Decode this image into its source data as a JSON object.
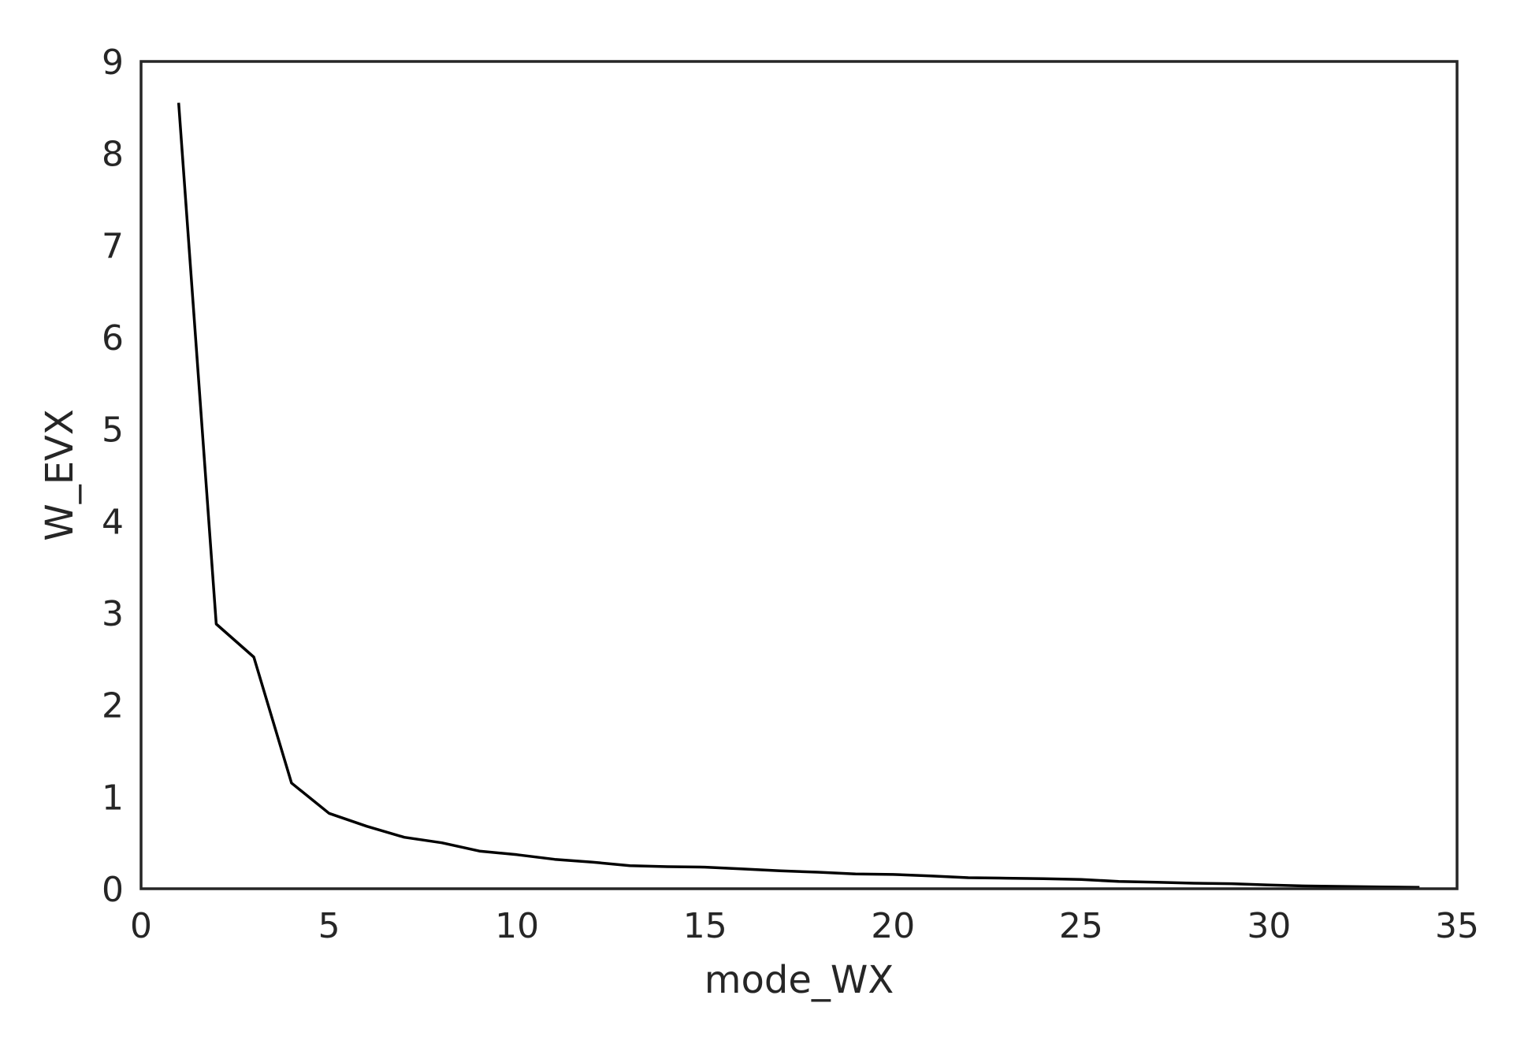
{
  "chart_data": {
    "type": "line",
    "title": "",
    "xlabel": "mode_WX",
    "ylabel": "W_EVX",
    "xlim": [
      0,
      35
    ],
    "ylim": [
      0,
      9
    ],
    "x_ticks": [
      0,
      5,
      10,
      15,
      20,
      25,
      30,
      35
    ],
    "y_ticks": [
      0,
      1,
      2,
      3,
      4,
      5,
      6,
      7,
      8,
      9
    ],
    "grid": false,
    "legend": "none",
    "series": [
      {
        "color": "#000000",
        "x": [
          1,
          2,
          3,
          4,
          5,
          6,
          7,
          8,
          9,
          10,
          11,
          12,
          13,
          14,
          15,
          16,
          17,
          18,
          19,
          20,
          21,
          22,
          23,
          24,
          25,
          26,
          27,
          28,
          29,
          30,
          31,
          32,
          33,
          34
        ],
        "y": [
          8.55,
          2.88,
          2.52,
          1.15,
          0.82,
          0.68,
          0.56,
          0.5,
          0.41,
          0.37,
          0.32,
          0.29,
          0.25,
          0.24,
          0.235,
          0.215,
          0.195,
          0.18,
          0.16,
          0.155,
          0.14,
          0.12,
          0.115,
          0.11,
          0.1,
          0.08,
          0.07,
          0.06,
          0.055,
          0.04,
          0.03,
          0.025,
          0.02,
          0.015
        ]
      }
    ]
  }
}
